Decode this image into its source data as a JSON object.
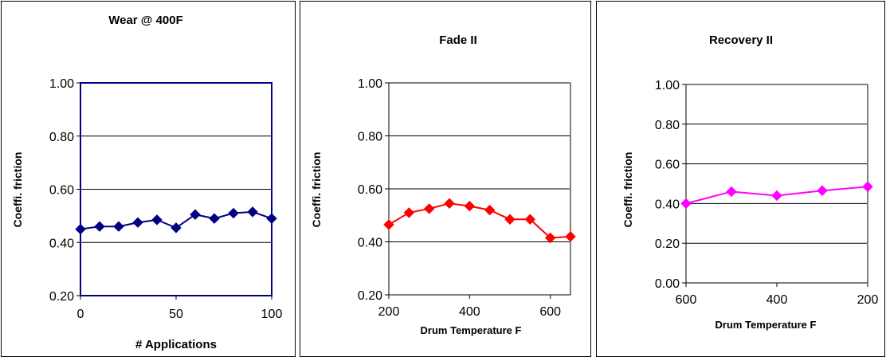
{
  "chart_data": [
    {
      "type": "line",
      "title": "Wear @ 400F",
      "xlabel": "# Applications",
      "ylabel": "Coeffi. friction",
      "xlim": [
        0,
        100
      ],
      "ylim": [
        0.2,
        1.0
      ],
      "x_ticks": [
        "0",
        "50",
        "100"
      ],
      "y_ticks": [
        "0.20",
        "0.40",
        "0.60",
        "0.80",
        "1.00"
      ],
      "grid": true,
      "series": [
        {
          "color": "#000080",
          "marker": "diamond",
          "x": [
            0,
            10,
            20,
            30,
            40,
            50,
            60,
            70,
            80,
            90,
            100
          ],
          "y": [
            0.45,
            0.46,
            0.46,
            0.475,
            0.485,
            0.455,
            0.505,
            0.49,
            0.51,
            0.515,
            0.49
          ]
        }
      ]
    },
    {
      "type": "line",
      "title": "Fade II",
      "xlabel": "Drum Temperature F",
      "ylabel": "Coeffi. friction",
      "xlim": [
        200,
        650
      ],
      "ylim": [
        0.2,
        1.0
      ],
      "x_ticks": [
        "200",
        "400",
        "600"
      ],
      "y_ticks": [
        "0.20",
        "0.40",
        "0.60",
        "0.80",
        "1.00"
      ],
      "grid": true,
      "series": [
        {
          "color": "#ff0000",
          "marker": "diamond",
          "x": [
            200,
            250,
            300,
            350,
            400,
            450,
            500,
            550,
            600,
            650
          ],
          "y": [
            0.465,
            0.51,
            0.525,
            0.545,
            0.535,
            0.52,
            0.485,
            0.485,
            0.415,
            0.42
          ]
        }
      ]
    },
    {
      "type": "line",
      "title": "Recovery II",
      "xlabel": "Drum Temperature F",
      "ylabel": "Coeffi. friction",
      "xlim": [
        600,
        200
      ],
      "ylim": [
        0.0,
        1.0
      ],
      "x_ticks": [
        "600",
        "400",
        "200"
      ],
      "y_ticks": [
        "0.00",
        "0.20",
        "0.40",
        "0.60",
        "0.80",
        "1.00"
      ],
      "grid": true,
      "series": [
        {
          "color": "#ff00ff",
          "marker": "diamond",
          "x": [
            600,
            500,
            400,
            300,
            200
          ],
          "y": [
            0.4,
            0.46,
            0.44,
            0.465,
            0.485
          ]
        }
      ]
    }
  ]
}
